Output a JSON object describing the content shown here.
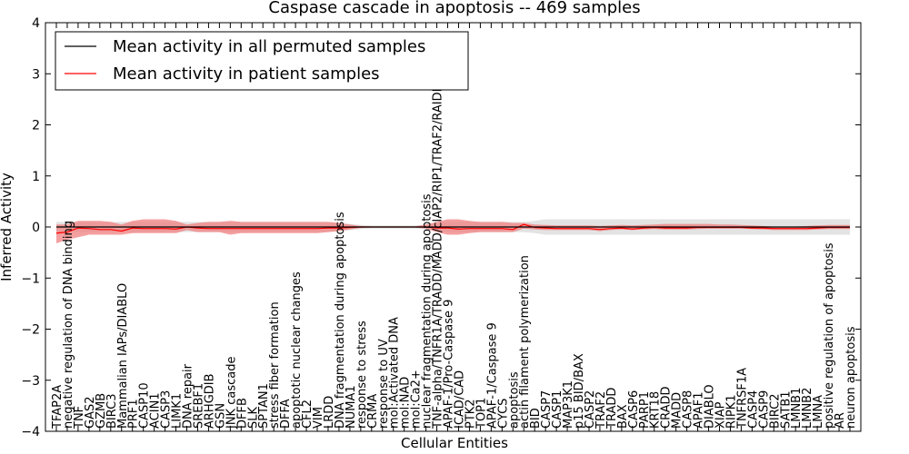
{
  "chart_data": {
    "type": "line",
    "title": "Caspase cascade in apoptosis -- 469 samples",
    "xlabel": "Cellular Entities",
    "ylabel": "Inferred Activity",
    "ylim": [
      -4,
      4
    ],
    "yticks": [
      "4",
      "3",
      "2",
      "1",
      "0",
      "−1",
      "−2",
      "−3",
      "−4"
    ],
    "ytick_values": [
      4,
      3,
      2,
      1,
      0,
      -1,
      -2,
      -3,
      -4
    ],
    "legend": {
      "placement": "top-left",
      "entries": [
        {
          "label": "Mean activity in all permuted samples",
          "color": "#000000"
        },
        {
          "label": "Mean activity in patient samples",
          "color": "#ff0000"
        }
      ]
    },
    "colors": {
      "permuted_line": "#000000",
      "patient_line": "#ff0000",
      "permuted_band": "#cccccc",
      "patient_band": "#f08080"
    },
    "categories": [
      "TFAP2A",
      "negative regulation of DNA binding",
      "TNF",
      "GAS2",
      "GZMB",
      "BIRC3",
      "Mammalian IAPs/DIABLO",
      "PRF1",
      "CASP10",
      "ACIN1",
      "CASP3",
      "LIMK1",
      "DNA repair",
      "SREBF1",
      "ARHGDIB",
      "GSN",
      "JNK cascade",
      "DFFB",
      "SLK",
      "SPTAN1",
      "stress fiber formation",
      "DFFA",
      "apoptotic nuclear changes",
      "CFL2",
      "VIM",
      "LRDD",
      "DNA fragmentation during apoptosis",
      "NUMA1",
      "response to stress",
      "CRMA",
      "response to UV",
      "mol:Activated DNA",
      "mol:NAD",
      "mol:Ca2+",
      "nuclear fragmentation during apoptosis",
      "TNF-alpha/TNFR1A/TRADD/MADD/cIAP2/RIP1/TRAF2/RAIDD",
      "APAF-1/Pro-Caspase 9",
      "ICAD/CAD",
      "PTK2",
      "TOP1",
      "APAF-1/Caspase 9",
      "CYCS",
      "apoptosis",
      "actin filament polymerization",
      "BID",
      "CASP7",
      "CASP1",
      "MAP3K1",
      "p15 BID/BAX",
      "CASP2",
      "TRAF2",
      "TRADD",
      "BAX",
      "CASP6",
      "PARP1",
      "KRT18",
      "CRADD",
      "MADD",
      "CASP8",
      "APAF1",
      "DIABLO",
      "XIAP",
      "RIPK1",
      "TNFRSF1A",
      "CASP4",
      "CASP9",
      "BIRC2",
      "SATB1",
      "LMNB1",
      "LMNB2",
      "LMNA",
      "positive regulation of apoptosis",
      "AR",
      "neuron apoptosis"
    ],
    "series": [
      {
        "name": "Mean activity in all permuted samples",
        "values": [
          0.0,
          0.0,
          0.0,
          0.0,
          0.0,
          0.0,
          0.0,
          0.0,
          0.0,
          0.0,
          0.0,
          0.0,
          0.0,
          0.0,
          0.0,
          0.0,
          0.0,
          0.0,
          0.0,
          0.0,
          0.0,
          0.0,
          0.0,
          0.0,
          0.0,
          0.0,
          0.0,
          0.0,
          0.0,
          0.0,
          0.0,
          0.0,
          0.0,
          0.0,
          0.0,
          0.0,
          0.0,
          0.0,
          0.0,
          0.0,
          0.0,
          0.0,
          0.0,
          0.0,
          0.0,
          0.0,
          0.0,
          0.0,
          0.0,
          0.0,
          0.0,
          0.0,
          0.0,
          0.0,
          0.0,
          0.0,
          0.0,
          0.0,
          0.0,
          0.0,
          0.0,
          0.0,
          0.0,
          0.0,
          0.0,
          0.0,
          0.0,
          0.0,
          0.0,
          0.0,
          0.0,
          0.0,
          0.0,
          0.0
        ],
        "lower": [
          -0.1,
          -0.1,
          -0.1,
          -0.1,
          -0.1,
          -0.1,
          -0.1,
          -0.1,
          -0.1,
          -0.1,
          -0.1,
          -0.1,
          -0.1,
          -0.1,
          -0.1,
          -0.1,
          -0.1,
          -0.1,
          -0.1,
          -0.1,
          -0.1,
          -0.1,
          -0.1,
          -0.1,
          -0.1,
          -0.1,
          -0.08,
          -0.06,
          -0.04,
          -0.03,
          -0.03,
          -0.03,
          -0.03,
          -0.03,
          -0.05,
          -0.08,
          -0.1,
          -0.1,
          -0.1,
          -0.1,
          -0.1,
          -0.1,
          -0.1,
          -0.1,
          -0.12,
          -0.15,
          -0.15,
          -0.15,
          -0.15,
          -0.15,
          -0.15,
          -0.15,
          -0.15,
          -0.15,
          -0.15,
          -0.15,
          -0.15,
          -0.15,
          -0.15,
          -0.15,
          -0.15,
          -0.15,
          -0.15,
          -0.15,
          -0.15,
          -0.15,
          -0.15,
          -0.15,
          -0.15,
          -0.15,
          -0.15,
          -0.15,
          -0.15,
          -0.15
        ],
        "upper": [
          0.1,
          0.1,
          0.1,
          0.1,
          0.1,
          0.1,
          0.1,
          0.1,
          0.1,
          0.1,
          0.1,
          0.1,
          0.1,
          0.1,
          0.1,
          0.1,
          0.1,
          0.1,
          0.1,
          0.1,
          0.1,
          0.1,
          0.1,
          0.1,
          0.1,
          0.1,
          0.08,
          0.06,
          0.04,
          0.03,
          0.03,
          0.03,
          0.03,
          0.03,
          0.05,
          0.08,
          0.1,
          0.1,
          0.1,
          0.1,
          0.1,
          0.1,
          0.1,
          0.1,
          0.12,
          0.15,
          0.15,
          0.15,
          0.15,
          0.15,
          0.15,
          0.15,
          0.15,
          0.15,
          0.15,
          0.15,
          0.15,
          0.15,
          0.15,
          0.15,
          0.15,
          0.15,
          0.15,
          0.15,
          0.15,
          0.15,
          0.15,
          0.15,
          0.15,
          0.15,
          0.15,
          0.15,
          0.15,
          0.15
        ]
      },
      {
        "name": "Mean activity in patient samples",
        "values": [
          -0.12,
          -0.1,
          -0.02,
          -0.03,
          -0.05,
          -0.05,
          -0.08,
          -0.02,
          -0.03,
          -0.03,
          -0.03,
          -0.04,
          0.0,
          -0.02,
          -0.03,
          -0.03,
          -0.03,
          -0.03,
          -0.03,
          -0.03,
          -0.03,
          -0.03,
          -0.03,
          -0.03,
          -0.03,
          -0.02,
          -0.02,
          -0.01,
          0.0,
          0.0,
          0.0,
          0.0,
          0.0,
          0.0,
          0.0,
          -0.02,
          -0.02,
          -0.04,
          -0.03,
          -0.03,
          -0.03,
          -0.03,
          -0.05,
          0.05,
          -0.01,
          -0.02,
          -0.03,
          -0.03,
          -0.03,
          -0.03,
          -0.05,
          -0.03,
          -0.02,
          -0.04,
          -0.02,
          -0.01,
          -0.02,
          -0.02,
          -0.02,
          -0.01,
          -0.01,
          -0.01,
          -0.01,
          -0.01,
          -0.02,
          -0.02,
          -0.03,
          -0.03,
          -0.03,
          -0.03,
          -0.02,
          -0.01,
          -0.01,
          -0.01
        ],
        "lower": [
          -0.32,
          -0.25,
          -0.2,
          -0.15,
          -0.15,
          -0.15,
          -0.15,
          -0.12,
          -0.12,
          -0.12,
          -0.12,
          -0.12,
          -0.06,
          -0.1,
          -0.1,
          -0.1,
          -0.15,
          -0.12,
          -0.12,
          -0.12,
          -0.12,
          -0.12,
          -0.12,
          -0.12,
          -0.12,
          -0.1,
          -0.08,
          -0.05,
          -0.02,
          -0.01,
          -0.01,
          -0.01,
          -0.01,
          -0.01,
          -0.03,
          -0.1,
          -0.15,
          -0.15,
          -0.12,
          -0.1,
          -0.1,
          -0.1,
          -0.1,
          -0.03,
          -0.05,
          -0.06,
          -0.06,
          -0.06,
          -0.06,
          -0.06,
          -0.08,
          -0.06,
          -0.05,
          -0.06,
          -0.05,
          -0.04,
          -0.05,
          -0.05,
          -0.05,
          -0.04,
          -0.03,
          -0.03,
          -0.03,
          -0.03,
          -0.04,
          -0.05,
          -0.06,
          -0.06,
          -0.06,
          -0.06,
          -0.05,
          -0.04,
          -0.04,
          -0.04
        ],
        "upper": [
          0.05,
          0.05,
          0.12,
          0.12,
          0.12,
          0.1,
          0.05,
          0.12,
          0.15,
          0.15,
          0.15,
          0.12,
          0.05,
          0.08,
          0.1,
          0.1,
          0.12,
          0.1,
          0.1,
          0.1,
          0.1,
          0.1,
          0.1,
          0.1,
          0.1,
          0.1,
          0.08,
          0.05,
          0.02,
          0.01,
          0.01,
          0.01,
          0.01,
          0.01,
          0.05,
          0.1,
          0.15,
          0.15,
          0.12,
          0.1,
          0.1,
          0.1,
          0.08,
          0.08,
          0.05,
          0.04,
          0.03,
          0.03,
          0.03,
          0.03,
          0.02,
          0.03,
          0.04,
          0.03,
          0.04,
          0.05,
          0.06,
          0.06,
          0.06,
          0.06,
          0.06,
          0.05,
          0.05,
          0.04,
          0.03,
          0.02,
          0.01,
          0.01,
          0.01,
          0.02,
          0.03,
          0.04,
          0.04,
          0.04
        ]
      }
    ]
  }
}
